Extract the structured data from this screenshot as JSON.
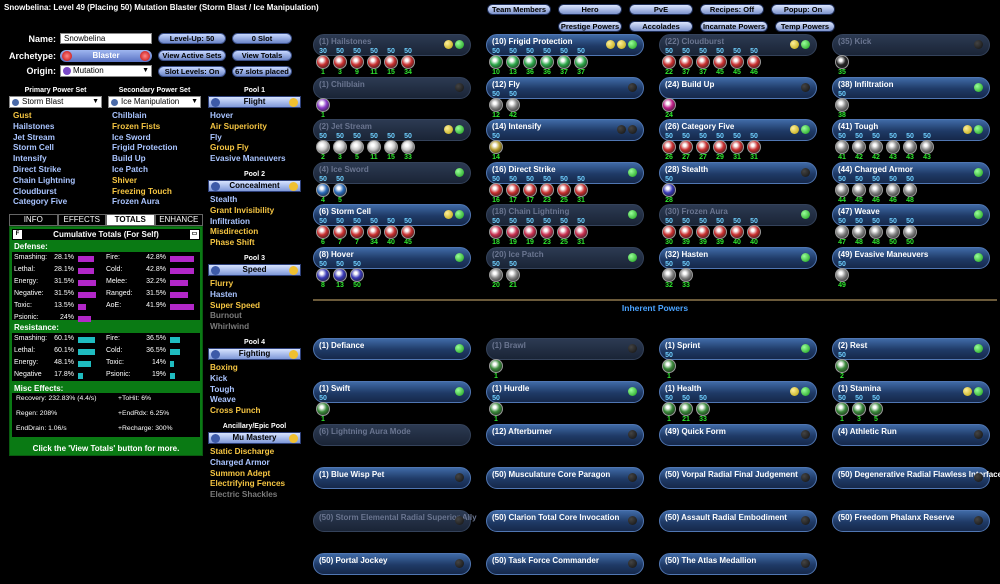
{
  "title": "Snowbelina: Level 49 (Placing 50) Mutation Blaster (Storm Blast / Ice Manipulation)",
  "form": {
    "name_label": "Name:",
    "name_value": "Snowbelina",
    "archetype_label": "Archetype:",
    "archetype_value": "Blaster",
    "origin_label": "Origin:",
    "origin_value": "Mutation"
  },
  "buttons": {
    "level": "Level-Up: 50",
    "slot": "0 Slot",
    "view_active": "View Active Sets",
    "view_totals": "View Totals",
    "slot_levels": "Slot Levels: On",
    "slots_placed": "67 slots placed"
  },
  "top": {
    "team": "Team Members",
    "hero": "Hero",
    "pve": "PvE",
    "recipes": "Recipes: Off",
    "popup": "Popup: On",
    "prestige": "Prestige Powers",
    "accolades": "Accolades",
    "incarnate": "Incarnate Powers",
    "temp": "Temp Powers"
  },
  "primary": {
    "header": "Primary Power Set",
    "value": "Storm Blast",
    "powers": [
      {
        "n": "Gust",
        "c": "gold"
      },
      {
        "n": "Hailstones",
        "c": "blue"
      },
      {
        "n": "Jet Stream",
        "c": "blue"
      },
      {
        "n": "Storm Cell",
        "c": "blue"
      },
      {
        "n": "Intensify",
        "c": "blue"
      },
      {
        "n": "Direct Strike",
        "c": "blue"
      },
      {
        "n": "Chain Lightning",
        "c": "blue"
      },
      {
        "n": "Cloudburst",
        "c": "blue"
      },
      {
        "n": "Category Five",
        "c": "blue"
      }
    ]
  },
  "secondary": {
    "header": "Secondary Power Set",
    "value": "Ice Manipulation",
    "powers": [
      {
        "n": "Chilblain",
        "c": "blue"
      },
      {
        "n": "Frozen Fists",
        "c": "gold"
      },
      {
        "n": "Ice Sword",
        "c": "blue"
      },
      {
        "n": "Frigid Protection",
        "c": "blue"
      },
      {
        "n": "Build Up",
        "c": "blue"
      },
      {
        "n": "Ice Patch",
        "c": "blue"
      },
      {
        "n": "Shiver",
        "c": "gold"
      },
      {
        "n": "Freezing Touch",
        "c": "gold"
      },
      {
        "n": "Frozen Aura",
        "c": "blue"
      }
    ]
  },
  "pools": [
    {
      "header": "Pool 1",
      "value": "Flight",
      "powers": [
        {
          "n": "Hover",
          "c": "blue"
        },
        {
          "n": "Air Superiority",
          "c": "gold"
        },
        {
          "n": "Fly",
          "c": "blue"
        },
        {
          "n": "Group Fly",
          "c": "gold"
        },
        {
          "n": "Evasive Maneuvers",
          "c": "blue"
        }
      ]
    },
    {
      "header": "Pool 2",
      "value": "Concealment",
      "powers": [
        {
          "n": "Stealth",
          "c": "blue"
        },
        {
          "n": "Grant Invisibility",
          "c": "gold"
        },
        {
          "n": "Infiltration",
          "c": "blue"
        },
        {
          "n": "Misdirection",
          "c": "gold"
        },
        {
          "n": "Phase Shift",
          "c": "gold"
        }
      ]
    },
    {
      "header": "Pool 3",
      "value": "Speed",
      "powers": [
        {
          "n": "Flurry",
          "c": "gold"
        },
        {
          "n": "Hasten",
          "c": "blue"
        },
        {
          "n": "Super Speed",
          "c": "gold"
        },
        {
          "n": "Burnout",
          "c": "grey"
        },
        {
          "n": "Whirlwind",
          "c": "grey"
        }
      ]
    },
    {
      "header": "Pool 4",
      "value": "Fighting",
      "powers": [
        {
          "n": "Boxing",
          "c": "gold"
        },
        {
          "n": "Kick",
          "c": "blue"
        },
        {
          "n": "Tough",
          "c": "blue"
        },
        {
          "n": "Weave",
          "c": "blue"
        },
        {
          "n": "Cross Punch",
          "c": "gold"
        }
      ]
    },
    {
      "header": "Ancillary/Epic Pool",
      "value": "Mu Mastery",
      "powers": [
        {
          "n": "Static Discharge",
          "c": "gold"
        },
        {
          "n": "Charged Armor",
          "c": "blue"
        },
        {
          "n": "Summon Adept",
          "c": "gold"
        },
        {
          "n": "Electrifying Fences",
          "c": "gold"
        },
        {
          "n": "Electric Shackles",
          "c": "grey"
        }
      ]
    }
  ],
  "tabs": [
    "INFO",
    "EFFECTS",
    "TOTALS",
    "ENHANCE"
  ],
  "totals": {
    "header": "Cumulative Totals (For Self)",
    "defense_label": "Defense:",
    "resistance_label": "Resistance:",
    "misc_label": "Misc Effects:",
    "defense": [
      [
        "Smashing:",
        "28.1%",
        0.56
      ],
      [
        "Fire:",
        "42.8%",
        0.86
      ],
      [
        "Lethal:",
        "28.1%",
        0.56
      ],
      [
        "Cold:",
        "42.8%",
        0.86
      ],
      [
        "Energy:",
        "31.5%",
        0.63
      ],
      [
        "Melee:",
        "32.2%",
        0.64
      ],
      [
        "Negative:",
        "31.5%",
        0.63
      ],
      [
        "Ranged:",
        "31.5%",
        0.63
      ],
      [
        "Toxic:",
        "13.5%",
        0.27
      ],
      [
        "AoE:",
        "41.9%",
        0.84
      ],
      [
        "Psionic:",
        "24%",
        0.48
      ]
    ],
    "resistance": [
      [
        "Smashing:",
        "60.1%",
        0.6
      ],
      [
        "Fire:",
        "36.5%",
        0.37
      ],
      [
        "Lethal:",
        "60.1%",
        0.6
      ],
      [
        "Cold:",
        "36.5%",
        0.37
      ],
      [
        "Energy:",
        "48.1%",
        0.48
      ],
      [
        "Toxic:",
        "14%",
        0.14
      ],
      [
        "Negative",
        "17.8%",
        0.18
      ],
      [
        "Psionic:",
        "19%",
        0.19
      ]
    ],
    "misc": [
      "Recovery: 232.83% (4.4/s)",
      "+ToHit: 6%",
      "Regen: 208%",
      "+EndRdx: 6.25%",
      "EndDrain: 1.06/s",
      "+Recharge: 300%"
    ],
    "footer": "Click the 'View Totals' button for more."
  },
  "slots": [
    {
      "n": "(1) Hailstones",
      "dim": true,
      "l": [
        "y",
        "g"
      ],
      "e": [
        "30",
        "50",
        "50",
        "50",
        "50",
        "50"
      ],
      "lv": [
        "1",
        "3",
        "9",
        "11",
        "15",
        "34"
      ],
      "col": "#c83030"
    },
    {
      "n": "(10) Frigid Protection",
      "dim": false,
      "l": [
        "y",
        "y",
        "g"
      ],
      "e": [
        "50",
        "50",
        "50",
        "50",
        "50",
        "50"
      ],
      "lv": [
        "10",
        "13",
        "36",
        "36",
        "37",
        "37"
      ],
      "col": "#2ea84a"
    },
    {
      "n": "(22) Cloudburst",
      "dim": true,
      "l": [
        "y",
        "g"
      ],
      "e": [
        "50",
        "50",
        "50",
        "50",
        "50",
        "50"
      ],
      "lv": [
        "22",
        "37",
        "37",
        "45",
        "45",
        "46"
      ],
      "col": "#c83030"
    },
    {
      "n": "(35) Kick",
      "dim": true,
      "l": [
        "k"
      ],
      "e": [
        ""
      ],
      "lv": [
        "35"
      ],
      "col": "#222"
    },
    {
      "n": "(1) Chilblain",
      "dim": true,
      "l": [
        "k"
      ],
      "e": [
        ""
      ],
      "lv": [
        "1"
      ],
      "col": "#8a3ac8"
    },
    {
      "n": "(12) Fly",
      "dim": false,
      "l": [
        "k"
      ],
      "e": [
        "50",
        "50"
      ],
      "lv": [
        "12",
        "42"
      ],
      "col": "#888"
    },
    {
      "n": "(24) Build Up",
      "dim": false,
      "l": [
        "k"
      ],
      "e": [
        ""
      ],
      "lv": [
        "24"
      ],
      "col": "#c0208a"
    },
    {
      "n": "(38) Infiltration",
      "dim": false,
      "l": [
        "g"
      ],
      "e": [
        "50"
      ],
      "lv": [
        "38"
      ],
      "col": "#888"
    },
    {
      "n": "(2) Jet Stream",
      "dim": true,
      "l": [
        "y",
        "g"
      ],
      "e": [
        "50",
        "50",
        "50",
        "50",
        "50",
        "50"
      ],
      "lv": [
        "2",
        "3",
        "5",
        "11",
        "15",
        "33"
      ],
      "col": "#c8c8c8"
    },
    {
      "n": "(14) Intensify",
      "dim": false,
      "l": [
        "k",
        "k"
      ],
      "e": [
        "50"
      ],
      "lv": [
        "14"
      ],
      "col": "#b8a030"
    },
    {
      "n": "(26) Category Five",
      "dim": false,
      "l": [
        "y",
        "g"
      ],
      "e": [
        "50",
        "50",
        "50",
        "50",
        "50",
        "50"
      ],
      "lv": [
        "26",
        "27",
        "27",
        "29",
        "31",
        "31"
      ],
      "col": "#c83030"
    },
    {
      "n": "(41) Tough",
      "dim": false,
      "l": [
        "y",
        "g"
      ],
      "e": [
        "50",
        "50",
        "50",
        "50",
        "50",
        "50"
      ],
      "lv": [
        "41",
        "42",
        "42",
        "43",
        "43",
        "43"
      ],
      "col": "#888"
    },
    {
      "n": "(4) Ice Sword",
      "dim": true,
      "l": [
        "g"
      ],
      "e": [
        "50",
        "50"
      ],
      "lv": [
        "4",
        "5"
      ],
      "col": "#2a6ab8"
    },
    {
      "n": "(16) Direct Strike",
      "dim": false,
      "l": [
        "g"
      ],
      "e": [
        "50",
        "50",
        "50",
        "50",
        "50",
        "50"
      ],
      "lv": [
        "16",
        "17",
        "17",
        "23",
        "25",
        "31"
      ],
      "col": "#c83030"
    },
    {
      "n": "(28) Stealth",
      "dim": false,
      "l": [
        "k"
      ],
      "e": [
        "50"
      ],
      "lv": [
        "28"
      ],
      "col": "#3a3ab8"
    },
    {
      "n": "(44) Charged Armor",
      "dim": false,
      "l": [
        "g"
      ],
      "e": [
        "50",
        "50",
        "50",
        "50",
        "50"
      ],
      "lv": [
        "44",
        "45",
        "46",
        "46",
        "48"
      ],
      "col": "#888"
    },
    {
      "n": "(6) Storm Cell",
      "dim": false,
      "l": [
        "y",
        "g"
      ],
      "e": [
        "50",
        "50",
        "50",
        "50",
        "50",
        "50"
      ],
      "lv": [
        "6",
        "7",
        "7",
        "34",
        "40",
        "45"
      ],
      "col": "#c83030"
    },
    {
      "n": "(18) Chain Lightning",
      "dim": true,
      "l": [
        "g"
      ],
      "e": [
        "50",
        "50",
        "50",
        "50",
        "50",
        "50"
      ],
      "lv": [
        "18",
        "19",
        "19",
        "23",
        "25",
        "31"
      ],
      "col": "#c83050"
    },
    {
      "n": "(30) Frozen Aura",
      "dim": true,
      "l": [
        "g"
      ],
      "e": [
        "50",
        "50",
        "50",
        "50",
        "50",
        "50"
      ],
      "lv": [
        "30",
        "39",
        "39",
        "39",
        "40",
        "40"
      ],
      "col": "#c83030"
    },
    {
      "n": "(47) Weave",
      "dim": false,
      "l": [
        "g"
      ],
      "e": [
        "50",
        "50",
        "50",
        "50",
        "50"
      ],
      "lv": [
        "47",
        "48",
        "48",
        "50",
        "50"
      ],
      "col": "#888"
    },
    {
      "n": "(8) Hover",
      "dim": false,
      "l": [
        "g"
      ],
      "e": [
        "50",
        "50",
        "50"
      ],
      "lv": [
        "8",
        "13",
        "50"
      ],
      "col": "#3a3ab8"
    },
    {
      "n": "(20) Ice Patch",
      "dim": true,
      "l": [
        "g"
      ],
      "e": [
        "50",
        "50"
      ],
      "lv": [
        "20",
        "21"
      ],
      "col": "#888"
    },
    {
      "n": "(32) Hasten",
      "dim": false,
      "l": [
        "g"
      ],
      "e": [
        "50",
        "50"
      ],
      "lv": [
        "32",
        "33"
      ],
      "col": "#888"
    },
    {
      "n": "(49) Evasive Maneuvers",
      "dim": false,
      "l": [
        "g"
      ],
      "e": [
        "50"
      ],
      "lv": [
        "49"
      ],
      "col": "#888"
    }
  ],
  "inherent_label": "Inherent Powers",
  "inherent": [
    {
      "n": "(1) Defiance",
      "dim": false,
      "l": [
        "g"
      ],
      "e": [],
      "lv": []
    },
    {
      "n": "(1) Brawl",
      "dim": true,
      "l": [
        "k"
      ],
      "e": [
        ""
      ],
      "lv": [
        "1"
      ]
    },
    {
      "n": "(1) Sprint",
      "dim": false,
      "l": [
        "g"
      ],
      "e": [
        "50"
      ],
      "lv": [
        "1"
      ]
    },
    {
      "n": "(2) Rest",
      "dim": false,
      "l": [
        "g"
      ],
      "e": [
        "50"
      ],
      "lv": [
        "2"
      ]
    },
    {
      "n": "(1) Swift",
      "dim": false,
      "l": [
        "g"
      ],
      "e": [
        "50"
      ],
      "lv": [
        "1"
      ]
    },
    {
      "n": "(1) Hurdle",
      "dim": false,
      "l": [
        "g"
      ],
      "e": [
        "50"
      ],
      "lv": [
        "1"
      ]
    },
    {
      "n": "(1) Health",
      "dim": false,
      "l": [
        "y",
        "g"
      ],
      "e": [
        "50",
        "50",
        "50"
      ],
      "lv": [
        "1",
        "21",
        "33"
      ]
    },
    {
      "n": "(1) Stamina",
      "dim": false,
      "l": [
        "y",
        "g"
      ],
      "e": [
        "50",
        "50",
        "50"
      ],
      "lv": [
        "1",
        "3",
        "5"
      ]
    },
    {
      "n": "(6) Lightning Aura Mode",
      "dim": true,
      "l": [],
      "e": [],
      "lv": []
    },
    {
      "n": "(12) Afterburner",
      "dim": false,
      "l": [
        "k"
      ],
      "e": [],
      "lv": []
    },
    {
      "n": "(49) Quick Form",
      "dim": false,
      "l": [
        "k"
      ],
      "e": [],
      "lv": []
    },
    {
      "n": "(4) Athletic Run",
      "dim": false,
      "l": [
        "k"
      ],
      "e": [],
      "lv": []
    },
    {
      "n": "(1) Blue Wisp Pet",
      "dim": false,
      "l": [
        "k"
      ],
      "e": [],
      "lv": []
    },
    {
      "n": "(50) Musculature Core Paragon",
      "dim": false,
      "l": [
        "k"
      ],
      "e": [],
      "lv": []
    },
    {
      "n": "(50) Vorpal Radial Final Judgement",
      "dim": false,
      "l": [
        "k"
      ],
      "e": [],
      "lv": []
    },
    {
      "n": "(50) Degenerative Radial Flawless Interface",
      "dim": false,
      "l": [
        "k"
      ],
      "e": [],
      "lv": []
    },
    {
      "n": "(50) Storm Elemental Radial Superior Ally",
      "dim": true,
      "l": [
        "k"
      ],
      "e": [],
      "lv": []
    },
    {
      "n": "(50) Clarion Total Core Invocation",
      "dim": false,
      "l": [
        "k"
      ],
      "e": [],
      "lv": []
    },
    {
      "n": "(50) Assault Radial Embodiment",
      "dim": false,
      "l": [
        "k"
      ],
      "e": [],
      "lv": []
    },
    {
      "n": "(50) Freedom Phalanx Reserve",
      "dim": false,
      "l": [
        "k"
      ],
      "e": [],
      "lv": []
    },
    {
      "n": "(50) Portal Jockey",
      "dim": false,
      "l": [
        "k"
      ],
      "e": [],
      "lv": []
    },
    {
      "n": "(50) Task Force Commander",
      "dim": false,
      "l": [
        "k"
      ],
      "e": [],
      "lv": []
    },
    {
      "n": "(50) The Atlas Medallion",
      "dim": false,
      "l": [
        "k"
      ],
      "e": [],
      "lv": []
    }
  ]
}
